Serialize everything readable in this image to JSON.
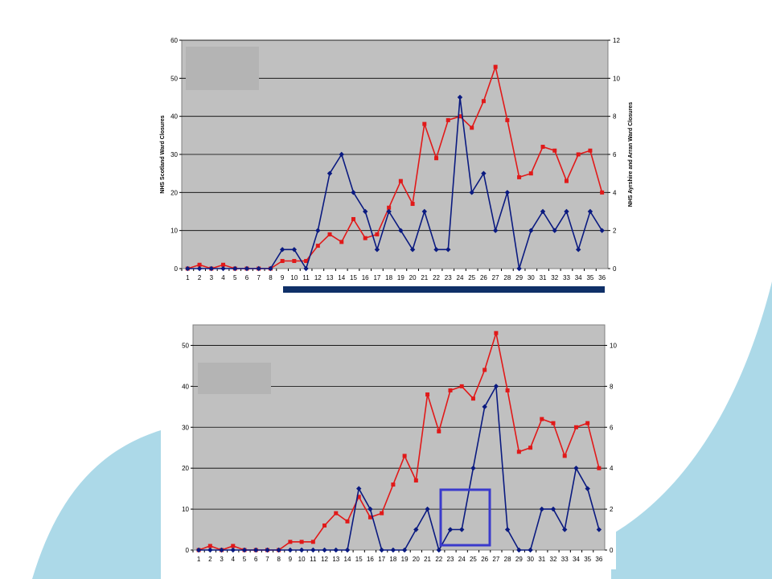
{
  "colors": {
    "background": "#ffffff",
    "swoosh": "#acd9e8",
    "plot_area": "#c0c0c0",
    "gridline": "#000000",
    "legend_box": "#b4b4b4",
    "bar_band": "#0f3068",
    "highlight_box": "#3a3acc",
    "series_red": "#e11919",
    "series_blue": "#0a1a80"
  },
  "chart_data": [
    {
      "type": "line",
      "title": "",
      "xlabel": "",
      "ylabel": "NHS Scotland Ward Closures",
      "y2label": "NHS Ayrshire and Arran Ward Closures",
      "x": [
        1,
        2,
        3,
        4,
        5,
        6,
        7,
        8,
        9,
        10,
        11,
        12,
        13,
        14,
        15,
        16,
        17,
        18,
        19,
        20,
        21,
        22,
        23,
        24,
        25,
        26,
        27,
        28,
        29,
        30,
        31,
        32,
        33,
        34,
        35,
        36
      ],
      "ylim": [
        0,
        60
      ],
      "y2lim": [
        0,
        12
      ],
      "yticks": [
        "0",
        "10",
        "20",
        "30",
        "40",
        "50",
        "60"
      ],
      "y2ticks": [
        "0",
        "2",
        "4",
        "6",
        "8",
        "10",
        "12"
      ],
      "grid": true,
      "series": [
        {
          "axis": "left",
          "color": "#e11919",
          "marker": "square",
          "values": [
            0,
            1,
            0,
            1,
            0,
            0,
            0,
            0,
            2,
            2,
            2,
            6,
            9,
            7,
            13,
            8,
            9,
            16,
            23,
            17,
            38,
            29,
            39,
            40,
            37,
            44,
            53,
            39,
            24,
            25,
            32,
            31,
            23,
            30,
            31,
            20
          ]
        },
        {
          "axis": "right",
          "color": "#0a1a80",
          "marker": "diamond",
          "values": [
            0,
            0,
            0,
            0,
            0,
            0,
            0,
            0,
            1,
            1,
            0,
            2,
            5,
            6,
            4,
            3,
            1,
            3,
            2,
            1,
            3,
            1,
            1,
            9,
            4,
            5,
            2,
            4,
            0,
            2,
            3,
            2,
            3,
            1,
            3,
            2
          ]
        }
      ]
    },
    {
      "type": "line",
      "title": "",
      "xlabel": "",
      "ylabel": "",
      "x": [
        1,
        2,
        3,
        4,
        5,
        6,
        7,
        8,
        9,
        10,
        11,
        12,
        13,
        14,
        15,
        16,
        17,
        18,
        19,
        20,
        21,
        22,
        23,
        24,
        25,
        26,
        27,
        28,
        29,
        30,
        31,
        32,
        33,
        34,
        35,
        36
      ],
      "ylim": [
        0,
        55
      ],
      "y2lim": [
        0,
        11
      ],
      "yticks": [
        "0",
        "10",
        "20",
        "30",
        "40",
        "50"
      ],
      "y2ticks": [
        "0",
        "2",
        "4",
        "6",
        "8",
        "10"
      ],
      "grid": true,
      "series": [
        {
          "axis": "left",
          "color": "#e11919",
          "marker": "square",
          "values": [
            0,
            1,
            0,
            1,
            0,
            0,
            0,
            0,
            2,
            2,
            2,
            6,
            9,
            7,
            13,
            8,
            9,
            16,
            23,
            17,
            38,
            29,
            39,
            40,
            37,
            44,
            53,
            39,
            24,
            25,
            32,
            31,
            23,
            30,
            31,
            20
          ]
        },
        {
          "axis": "right",
          "color": "#0a1a80",
          "marker": "diamond",
          "values": [
            0,
            0,
            0,
            0,
            0,
            0,
            0,
            0,
            0,
            0,
            0,
            0,
            0,
            0,
            3,
            2,
            0,
            0,
            0,
            1,
            2,
            0,
            1,
            1,
            4,
            7,
            8,
            1,
            0,
            0,
            2,
            2,
            1,
            4,
            3,
            1
          ]
        }
      ]
    }
  ]
}
